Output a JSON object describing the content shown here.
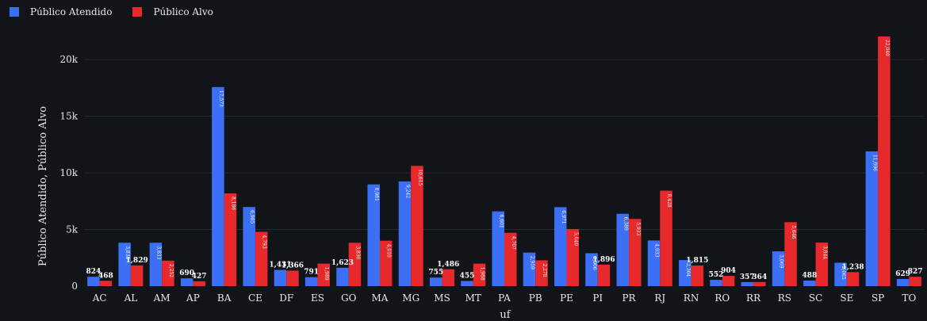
{
  "chart_data": {
    "type": "bar",
    "xlabel": "uf",
    "ylabel": "Público Atendido, Público Alvo",
    "ylim": [
      0,
      22040
    ],
    "yticks": [
      0,
      5000,
      10000,
      15000,
      20000
    ],
    "ytick_labels": [
      "0",
      "5k",
      "10k",
      "15k",
      "20k"
    ],
    "grid": true,
    "legend_position": "top-left",
    "categories": [
      "AC",
      "AL",
      "AM",
      "AP",
      "BA",
      "CE",
      "DF",
      "ES",
      "GO",
      "MA",
      "MG",
      "MS",
      "MT",
      "PA",
      "PB",
      "PE",
      "PI",
      "PR",
      "RJ",
      "RN",
      "RO",
      "RR",
      "RS",
      "SC",
      "SE",
      "SP",
      "TO"
    ],
    "series": [
      {
        "name": "Público Atendido",
        "color": "#3b6ff5",
        "values": [
          824,
          3835,
          3833,
          690,
          17573,
          6985,
          1431,
          791,
          1623,
          8981,
          9242,
          755,
          455,
          6601,
          2959,
          6971,
          2906,
          6389,
          4033,
          2304,
          552,
          357,
          3069,
          488,
          2065,
          11896,
          629
        ],
        "labels": [
          "824",
          "3,835",
          "3,833",
          "690",
          "17,573",
          "6,985",
          "1,431",
          "791",
          "1,623",
          "8,981",
          "9,242",
          "755",
          "455",
          "6,601",
          "2,959",
          "6,971",
          "2,906",
          "6,389",
          "4,033",
          "2,304",
          "552",
          "357",
          "3,069",
          "488",
          "2,065",
          "11,896",
          "629"
        ]
      },
      {
        "name": "Público Alvo",
        "color": "#e8292b",
        "values": [
          468,
          1829,
          2252,
          427,
          8186,
          4793,
          1366,
          1989,
          3830,
          4010,
          10615,
          1486,
          1988,
          4707,
          2278,
          5040,
          1896,
          5933,
          8428,
          1815,
          904,
          364,
          5646,
          3844,
          1238,
          22040,
          827
        ],
        "labels": [
          "468",
          "1,829",
          "2,252",
          "427",
          "8,186",
          "4,793",
          "1,366",
          "1,989",
          "3,830",
          "4,010",
          "10,615",
          "1,486",
          "1,988",
          "4,707",
          "2,278",
          "5,040",
          "1,896",
          "5,933",
          "8,428",
          "1,815",
          "904",
          "364",
          "5,646",
          "3,844",
          "1,238",
          "22,040",
          "827"
        ]
      }
    ]
  }
}
